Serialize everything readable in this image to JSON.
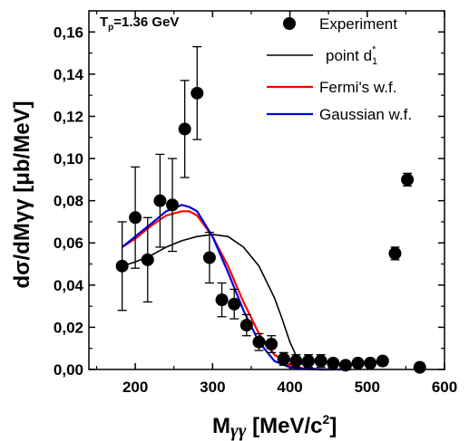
{
  "chart_data": {
    "type": "scatter",
    "annotation": {
      "main": "T",
      "sub": "p",
      "rest": "=1.36 GeV"
    },
    "xlabel": {
      "main": "M",
      "greek": "γγ",
      "rest": " [MeV/c",
      "sup": "2",
      "end": "]"
    },
    "ylabel": "dσ/dMγγ [μb/MeV]",
    "xlim": [
      140,
      600
    ],
    "ylim": [
      0,
      0.17
    ],
    "xticks": [
      200,
      300,
      400,
      500,
      600
    ],
    "xtick_labels": [
      "200",
      "300",
      "400",
      "500",
      "600"
    ],
    "yticks": [
      0,
      0.02,
      0.04,
      0.06,
      0.08,
      0.1,
      0.12,
      0.14,
      0.16
    ],
    "ytick_labels": [
      "0,00",
      "0,02",
      "0,04",
      "0,06",
      "0,08",
      "0,10",
      "0,12",
      "0,14",
      "0,16"
    ],
    "legend_position": "top-right",
    "series": [
      {
        "name": "Experiment",
        "kind": "points",
        "color": "#000000",
        "x": [
          183,
          200,
          216,
          232,
          248,
          264,
          280,
          296,
          312,
          328,
          344,
          360,
          376,
          392,
          408,
          424,
          440,
          456,
          472,
          488,
          504,
          520,
          536,
          552,
          568
        ],
        "y": [
          0.049,
          0.072,
          0.052,
          0.08,
          0.078,
          0.114,
          0.131,
          0.053,
          0.033,
          0.031,
          0.021,
          0.013,
          0.012,
          0.005,
          0.004,
          0.004,
          0.004,
          0.003,
          0.002,
          0.003,
          0.003,
          0.004,
          0.055,
          0.09,
          0.001
        ],
        "yerr": [
          0.021,
          0.024,
          0.02,
          0.022,
          0.022,
          0.023,
          0.022,
          0.012,
          0.008,
          0.007,
          0.005,
          0.004,
          0.004,
          0.003,
          0.003,
          0.003,
          0.003,
          0.002,
          0.002,
          0.002,
          0.002,
          0.002,
          0.003,
          0.003,
          0.002
        ]
      },
      {
        "name": "point d",
        "name_sup": "*",
        "name_sub": "1",
        "kind": "line",
        "color": "#000000",
        "x": [
          183,
          200,
          220,
          240,
          260,
          280,
          300,
          320,
          340,
          360,
          380,
          390,
          400,
          410,
          420,
          440,
          480
        ],
        "y": [
          0.049,
          0.051,
          0.054,
          0.058,
          0.061,
          0.063,
          0.064,
          0.063,
          0.058,
          0.049,
          0.034,
          0.024,
          0.013,
          0.005,
          0.001,
          0.0,
          0.0
        ]
      },
      {
        "name": "Fermi's     w.f.",
        "kind": "line",
        "color": "#ff0000",
        "x": [
          183,
          200,
          220,
          240,
          260,
          270,
          280,
          300,
          320,
          340,
          360,
          380,
          400,
          420,
          440,
          470
        ],
        "y": [
          0.058,
          0.062,
          0.068,
          0.073,
          0.075,
          0.075,
          0.073,
          0.063,
          0.049,
          0.032,
          0.017,
          0.007,
          0.002,
          0.0003,
          0.0,
          0.0
        ]
      },
      {
        "name": "Gaussian w.f.",
        "kind": "line",
        "color": "#0000dd",
        "x": [
          183,
          200,
          220,
          240,
          260,
          270,
          280,
          300,
          320,
          340,
          360,
          380,
          400,
          420,
          440,
          470
        ],
        "y": [
          0.058,
          0.063,
          0.069,
          0.075,
          0.078,
          0.077,
          0.075,
          0.063,
          0.046,
          0.028,
          0.013,
          0.004,
          0.001,
          0.0002,
          0.0,
          0.0
        ]
      }
    ]
  }
}
